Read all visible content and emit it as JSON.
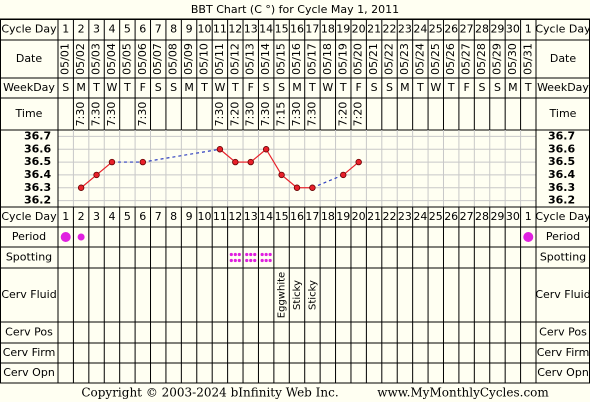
{
  "chart_data": {
    "type": "line",
    "title": "BBT Chart (C °) for Cycle May 1, 2011",
    "cycle_day_label": "Cycle Day",
    "date_label": "Date",
    "weekday_label": "WeekDay",
    "time_label": "Time",
    "period_label": "Period",
    "spotting_label": "Spotting",
    "cerv_fluid_label": "Cerv Fluid",
    "cerv_pos_label": "Cerv Pos",
    "cerv_firm_label": "Cerv Firm",
    "cerv_opn_label": "Cerv Opn",
    "cycle_days": [
      1,
      2,
      3,
      4,
      5,
      6,
      7,
      8,
      9,
      10,
      11,
      12,
      13,
      14,
      15,
      16,
      17,
      18,
      19,
      20,
      21,
      22,
      23,
      24,
      25,
      26,
      27,
      28,
      29,
      30,
      1
    ],
    "categories": [
      "05/01",
      "05/02",
      "05/03",
      "05/04",
      "05/05",
      "05/06",
      "05/07",
      "05/08",
      "05/09",
      "05/10",
      "05/11",
      "05/12",
      "05/13",
      "05/14",
      "05/15",
      "05/16",
      "05/17",
      "05/18",
      "05/19",
      "05/20",
      "05/21",
      "05/22",
      "05/23",
      "05/24",
      "05/25",
      "05/26",
      "05/27",
      "05/28",
      "05/29",
      "05/30",
      "05/31"
    ],
    "weekdays": [
      "S",
      "M",
      "T",
      "W",
      "T",
      "F",
      "S",
      "S",
      "M",
      "T",
      "W",
      "T",
      "F",
      "S",
      "S",
      "M",
      "T",
      "W",
      "T",
      "F",
      "S",
      "S",
      "M",
      "T",
      "W",
      "T",
      "F",
      "S",
      "S",
      "M",
      "T"
    ],
    "times": [
      null,
      "7:30",
      "7:30",
      "7:30",
      null,
      "7:30",
      null,
      null,
      null,
      null,
      "7:30",
      "7:20",
      "7:30",
      "7:30",
      "7:15",
      "7:30",
      "7:30",
      null,
      "7:20",
      "7:20",
      null,
      null,
      null,
      null,
      null,
      null,
      null,
      null,
      null,
      null,
      null
    ],
    "values": [
      null,
      36.3,
      36.4,
      36.5,
      null,
      36.5,
      null,
      null,
      null,
      null,
      36.6,
      36.5,
      36.5,
      36.6,
      36.4,
      36.3,
      36.3,
      null,
      36.4,
      36.5,
      null,
      null,
      null,
      null,
      null,
      null,
      null,
      null,
      null,
      null,
      null
    ],
    "color": "#e8202a",
    "ylim": [
      36.15,
      36.75
    ],
    "yticks": [
      36.2,
      36.3,
      36.4,
      36.5,
      36.6,
      36.7
    ],
    "grid": true,
    "period": [
      true,
      true,
      false,
      false,
      false,
      false,
      false,
      false,
      false,
      false,
      false,
      false,
      false,
      false,
      false,
      false,
      false,
      false,
      false,
      false,
      false,
      false,
      false,
      false,
      false,
      false,
      false,
      false,
      false,
      false,
      true
    ],
    "period_color": "#e020e0",
    "spotting": [
      false,
      false,
      false,
      false,
      false,
      false,
      false,
      false,
      false,
      false,
      false,
      true,
      true,
      true,
      false,
      false,
      false,
      false,
      false,
      false,
      false,
      false,
      false,
      false,
      false,
      false,
      false,
      false,
      false,
      false,
      false
    ],
    "cerv_fluid": [
      null,
      null,
      null,
      null,
      null,
      null,
      null,
      null,
      null,
      null,
      null,
      null,
      null,
      null,
      "Eggwhite",
      "Sticky",
      "Sticky",
      null,
      null,
      null,
      null,
      null,
      null,
      null,
      null,
      null,
      null,
      null,
      null,
      null,
      null
    ],
    "copyright": "Copyright © 2003-2024 bInfinity Web Inc.",
    "website": "www.MyMonthlyCycles.com"
  }
}
